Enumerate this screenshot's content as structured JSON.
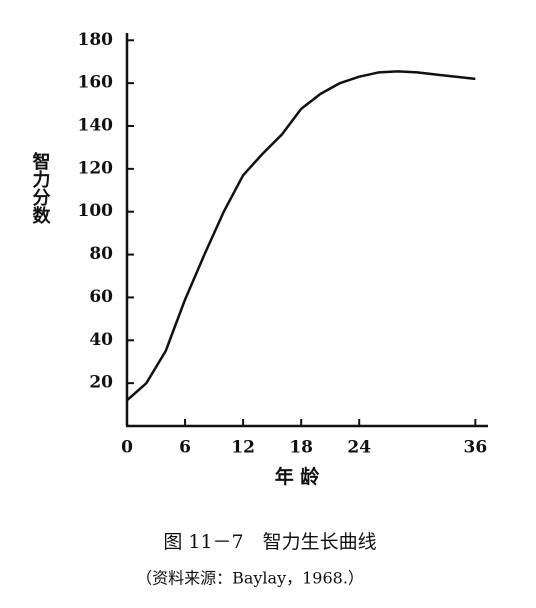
{
  "chart_data": {
    "type": "line",
    "caption": "图 11－7　智力生长曲线",
    "source": "（资料来源：Baylay，1968.）",
    "x_label": "年 龄",
    "y_label": "智力分数",
    "x": [
      0,
      2,
      4,
      6,
      8,
      10,
      12,
      14,
      16,
      18,
      20,
      22,
      24,
      26,
      28,
      30,
      32,
      34,
      36
    ],
    "values": [
      12,
      20,
      35,
      59,
      80,
      100,
      117,
      127,
      136,
      148,
      155,
      160,
      163,
      165,
      165.5,
      165,
      164,
      163,
      162
    ],
    "color": "#111111",
    "xlim": [
      0,
      37
    ],
    "ylim": [
      0,
      182
    ],
    "xticks": [
      0,
      6,
      12,
      18,
      24,
      36
    ],
    "yticks": [
      20,
      40,
      60,
      80,
      100,
      120,
      140,
      160,
      180
    ],
    "grid": false
  }
}
